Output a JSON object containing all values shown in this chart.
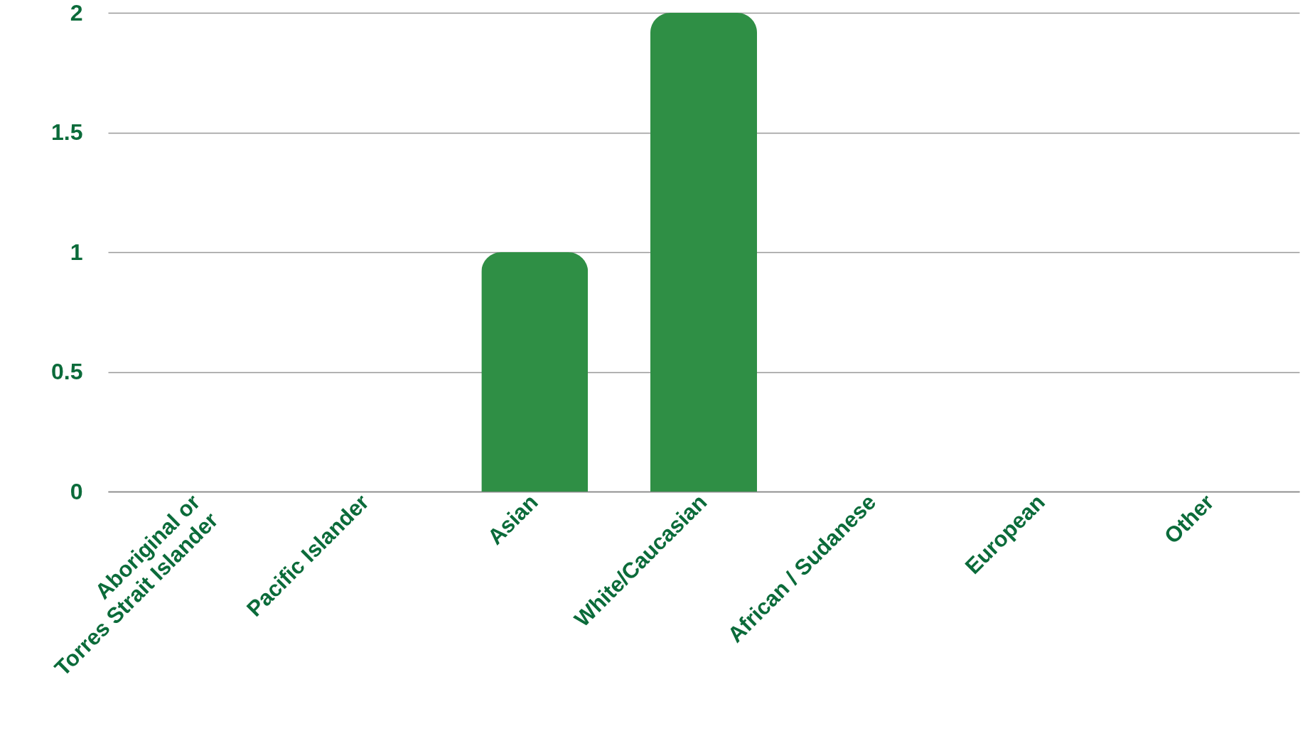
{
  "chart_data": {
    "type": "bar",
    "categories": [
      "Aboriginal or Torres Strait Islander",
      "Pacific Islander",
      "Asian",
      "White/Caucasian",
      "African / Sudanese",
      "European",
      "Other"
    ],
    "values": [
      0,
      0,
      1,
      2,
      0,
      0,
      0
    ],
    "color": "#2f8f45",
    "ylim": [
      0,
      2
    ],
    "yticks": [
      0,
      0.5,
      1,
      1.5,
      2
    ],
    "grid": "y"
  }
}
